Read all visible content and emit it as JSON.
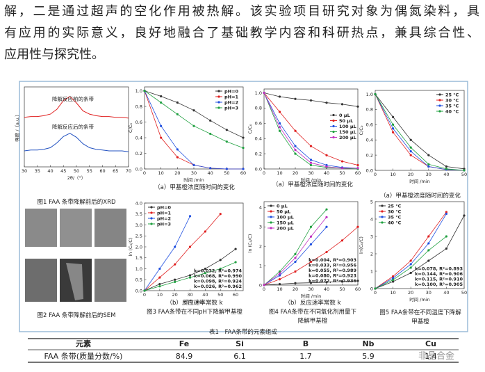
{
  "text_lines": [
    "解，二是通过超声的空化作用被热解。该实验项目研究对象为偶氮染料，具",
    "有应用的实际意义，良好地融合了基础教学内容和科研热点，兼具综合性、",
    "应用性与探究性。"
  ],
  "charts": [
    {
      "type": "line",
      "xlabel": "2θ/（°）",
      "ylabel": "强度 /（a.u.）",
      "xlim": [
        30,
        70
      ],
      "xticks": [
        30,
        35,
        40,
        45,
        50,
        55,
        60,
        65,
        70
      ],
      "ylim": [
        0,
        10
      ],
      "x": [
        30,
        32.5,
        35,
        37.5,
        40,
        42.5,
        45,
        47.5,
        50,
        52.5,
        55,
        57.5,
        60,
        62.5,
        65,
        67.5,
        70
      ],
      "annotations": [
        "降解反应前的条带",
        "降解反应后的条带"
      ],
      "series": [
        {
          "color": "#e02020",
          "values": [
            6.2,
            6.3,
            6.3,
            6.4,
            6.6,
            7.2,
            8.3,
            8.8,
            8.0,
            7.0,
            6.6,
            6.4,
            6.3,
            6.3,
            6.2,
            6.2,
            6.1
          ]
        },
        {
          "color": "#2050c0",
          "values": [
            2.0,
            2.1,
            2.1,
            2.2,
            2.4,
            3.0,
            3.8,
            4.2,
            3.7,
            2.9,
            2.4,
            2.2,
            2.1,
            2.0,
            2.0,
            2.0,
            1.9
          ]
        }
      ]
    },
    {
      "type": "line",
      "xlabel": "时间 /min",
      "ylabel": "C/C₀",
      "xlim": [
        0,
        60
      ],
      "xticks": [
        0,
        10,
        20,
        30,
        40,
        50,
        60
      ],
      "ylim": [
        0,
        1.05
      ],
      "yticks": [
        {
          "value": 0,
          "label": "0.0"
        },
        0.2,
        0.4,
        0.6,
        0.8,
        {
          "value": 1,
          "label": "1.0"
        }
      ],
      "legend": "upper right",
      "markers": true,
      "x": [
        0,
        10,
        20,
        30,
        40,
        50,
        60
      ],
      "series": [
        {
          "name": "pH=0",
          "color": "#333333",
          "values": [
            1,
            0.93,
            0.85,
            0.75,
            0.62,
            0.5,
            0.4
          ]
        },
        {
          "name": "pH=1",
          "color": "#e02020",
          "values": [
            1,
            0.4,
            0.15,
            0.05,
            0.01,
            0,
            0
          ]
        },
        {
          "name": "pH=2",
          "color": "#2050e0",
          "values": [
            1,
            0.55,
            0.25,
            0.05,
            0.01,
            0,
            0
          ]
        },
        {
          "name": "pH=3",
          "color": "#20a040",
          "values": [
            1,
            0.85,
            0.7,
            0.55,
            0.45,
            0.35,
            0.27
          ]
        }
      ]
    },
    {
      "type": "line",
      "xlabel": "时间 /min",
      "ylabel": "C/C₀",
      "xlim": [
        0,
        60
      ],
      "xticks": [
        0,
        10,
        20,
        30,
        40,
        50,
        60
      ],
      "ylim": [
        0,
        1.05
      ],
      "yticks": [
        {
          "value": 0,
          "label": "0.0"
        },
        0.2,
        0.4,
        0.6,
        0.8,
        {
          "value": 1,
          "label": "1.0"
        }
      ],
      "legend": "center right",
      "markers": true,
      "x": [
        0,
        10,
        20,
        30,
        40,
        50,
        60
      ],
      "series": [
        {
          "name": "0 μL",
          "color": "#333333",
          "values": [
            1,
            0.95,
            0.92,
            0.9,
            0.87,
            0.85,
            0.82
          ]
        },
        {
          "name": "50 μL",
          "color": "#e02020",
          "values": [
            1,
            0.75,
            0.5,
            0.3,
            0.18,
            0.1,
            0.05
          ]
        },
        {
          "name": "100 μL",
          "color": "#2050e0",
          "values": [
            1,
            0.6,
            0.3,
            0.12,
            0.05,
            0.02,
            0.01
          ]
        },
        {
          "name": "150 μL",
          "color": "#20a040",
          "values": [
            1,
            0.5,
            0.2,
            0.05,
            0.02,
            0.01,
            0
          ]
        },
        {
          "name": "200 μL",
          "color": "#c030c0",
          "values": [
            1,
            0.55,
            0.25,
            0.08,
            0.03,
            0.01,
            0.01
          ]
        }
      ]
    },
    {
      "type": "line",
      "xlabel": "时间 /min",
      "ylabel": "C/C₀",
      "xlim": [
        0,
        50
      ],
      "xticks": [
        0,
        10,
        20,
        30,
        40,
        50
      ],
      "ylim": [
        0,
        1.05
      ],
      "yticks": [
        {
          "value": 0,
          "label": "0.0"
        },
        0.2,
        0.4,
        0.6,
        0.8,
        {
          "value": 1,
          "label": "1.0"
        }
      ],
      "legend": "upper right",
      "markers": true,
      "x": [
        0,
        10,
        20,
        30,
        40,
        50
      ],
      "series": [
        {
          "name": "25 °C",
          "color": "#333333",
          "values": [
            1,
            0.7,
            0.4,
            0.2,
            0.05,
            0.02
          ]
        },
        {
          "name": "30 °C",
          "color": "#e02020",
          "values": [
            1,
            0.5,
            0.2,
            0.05,
            0.01,
            0
          ]
        },
        {
          "name": "35 °C",
          "color": "#2050e0",
          "values": [
            1,
            0.55,
            0.25,
            0.05,
            0.01,
            0
          ]
        },
        {
          "name": "40 °C",
          "color": "#20a040",
          "values": [
            1,
            0.6,
            0.3,
            0.08,
            0.02,
            0
          ]
        }
      ]
    },
    {
      "type": "line",
      "xlabel": "时间 /min",
      "ylabel": "ln (C₀/C)",
      "xlim": [
        0,
        65
      ],
      "xticks": [
        0,
        10,
        20,
        30,
        40,
        50,
        60
      ],
      "ylim": [
        0,
        4
      ],
      "yticks": [
        {
          "value": 0,
          "label": "0.0"
        },
        0.5,
        {
          "value": 1,
          "label": "1.0"
        },
        1.5,
        {
          "value": 2,
          "label": "2.0"
        },
        2.5,
        {
          "value": 3,
          "label": "3.0"
        },
        3.5,
        {
          "value": 4,
          "label": "4.0"
        }
      ],
      "legend": "upper left",
      "markers": true,
      "annotations": [
        "k=0.032, R²=0.974",
        "k=0.068, R²=0.990",
        "k=0.098, R²=0.924",
        "k=0.026, R²=0.962"
      ],
      "x": [
        0,
        10,
        20,
        30,
        40,
        50,
        60
      ],
      "series": [
        {
          "name": "pH=0",
          "color": "#333333",
          "values": [
            0,
            0.3,
            0.5,
            0.7,
            1.0,
            1.4,
            1.9
          ]
        },
        {
          "name": "pH=1",
          "color": "#e02020",
          "values": [
            0,
            0.6,
            1.2,
            2.0,
            2.7,
            3.5,
            null
          ]
        },
        {
          "name": "pH=2",
          "color": "#2050e0",
          "values": [
            0,
            1.0,
            2.0,
            3.4,
            null,
            null,
            null
          ]
        },
        {
          "name": "pH=3",
          "color": "#20a040",
          "values": [
            0,
            0.2,
            0.4,
            0.6,
            0.8,
            1.0,
            1.3
          ]
        }
      ]
    },
    {
      "type": "line",
      "xlabel": "时间 /min",
      "ylabel": "ln (C₀/C)",
      "xlim": [
        0,
        60
      ],
      "xticks": [
        0,
        10,
        20,
        30,
        40,
        50,
        60
      ],
      "ylim": [
        0,
        4.3
      ],
      "yticks": [
        0,
        1,
        2,
        3,
        4
      ],
      "legend": "upper left",
      "markers": true,
      "annotations": [
        "k=0.004, R²=0.903",
        "k=0.033, R²=0.956",
        "k=0.055, R²=0.989",
        "k=0.080, R²=0.923",
        "k=0.072, R²=0.936"
      ],
      "x": [
        0,
        10,
        20,
        30,
        40,
        50,
        60
      ],
      "series": [
        {
          "name": "0 μL",
          "color": "#333333",
          "values": [
            0,
            0.05,
            0.1,
            0.12,
            0.15,
            0.18,
            0.22
          ]
        },
        {
          "name": "50 μL",
          "color": "#e02020",
          "values": [
            0,
            0.3,
            0.7,
            1.2,
            1.7,
            2.3,
            3.0
          ]
        },
        {
          "name": "100 μL",
          "color": "#2050e0",
          "values": [
            0,
            0.5,
            1.2,
            2.1,
            3.0,
            null,
            null
          ]
        },
        {
          "name": "150 μL",
          "color": "#20a040",
          "values": [
            0,
            0.7,
            1.6,
            3.0,
            3.9,
            null,
            null
          ]
        },
        {
          "name": "200 μL",
          "color": "#c030c0",
          "values": [
            0,
            0.6,
            1.4,
            2.5,
            3.5,
            null,
            null
          ]
        }
      ]
    },
    {
      "type": "line",
      "xlabel": "时间 /min",
      "ylabel": "ln(C₀/C)",
      "xlim": [
        0,
        50
      ],
      "xticks": [
        0,
        10,
        20,
        30,
        40,
        50
      ],
      "ylim": [
        0,
        5
      ],
      "yticks": [
        0,
        1,
        2,
        3,
        4,
        5
      ],
      "legend": "upper left",
      "markers": true,
      "annotations": [
        "k=0.078, R²=0.893",
        "k=0.144, R²=0.906",
        "k=0.115, R²=0.910",
        "k=0.100, R²=0.905"
      ],
      "x": [
        0,
        10,
        20,
        30,
        40,
        50
      ],
      "series": [
        {
          "name": "25 °C",
          "color": "#333333",
          "values": [
            0,
            0.4,
            0.9,
            1.6,
            2.3,
            4.2
          ]
        },
        {
          "name": "30 °C",
          "color": "#e02020",
          "values": [
            0,
            0.7,
            1.6,
            3.0,
            4.4,
            null
          ]
        },
        {
          "name": "35 °C",
          "color": "#2050e0",
          "values": [
            0,
            0.6,
            1.4,
            2.6,
            4.3,
            null
          ]
        },
        {
          "name": "40 °C",
          "color": "#20a040",
          "values": [
            0,
            0.5,
            1.2,
            2.2,
            3.0,
            null
          ]
        }
      ]
    }
  ],
  "captions": [
    [
      "图1 FAA 条带降解前后的XRD"
    ],
    [
      "（a）甲基橙浓度随时间的变化"
    ],
    [
      "（a）甲基橙浓度随时间的变化"
    ],
    [
      "（a）甲基橙浓度随时间的变化"
    ],
    [
      "图2 FAA 条带降解前后的SEM"
    ],
    [
      "（b）反应速率常数 k",
      "图3 FAA条带在不同pH下降解甲基橙"
    ],
    [
      "（b）反应速率常数 k",
      "图4 FAA条带在不同氧化剂用量下",
      "降解甲基橙"
    ],
    [
      "图5 FAA条带在不同温度下降解",
      "甲基橙"
    ]
  ],
  "table": {
    "title": "表1　FAA条带的元素组成",
    "header": [
      "元素",
      "Fe",
      "Si",
      "B",
      "Nb",
      "Cu"
    ],
    "rows": [
      [
        "FAA 条带(质量分数/%)",
        "84.9",
        "6.1",
        "1.7",
        "5.9",
        "1.4"
      ]
    ]
  },
  "watermark": "非晶合金"
}
